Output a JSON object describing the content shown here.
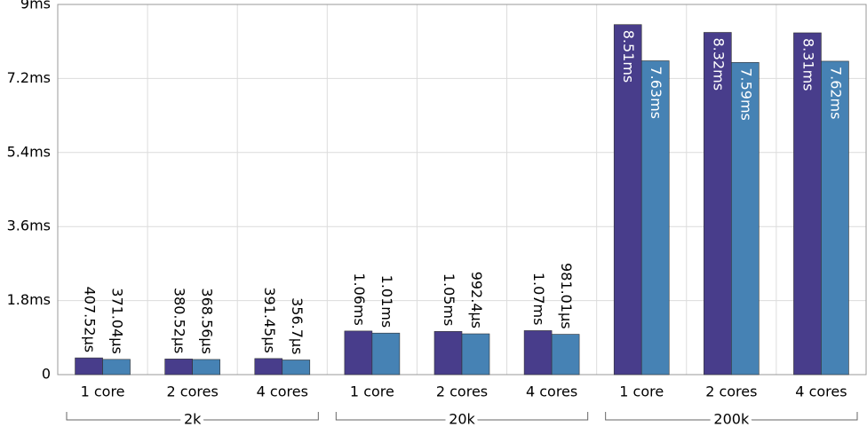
{
  "chart_data": {
    "type": "bar",
    "categories": [
      "1 core",
      "2 cores",
      "4 cores",
      "1 core",
      "2 cores",
      "4 cores",
      "1 core",
      "2 cores",
      "4 cores"
    ],
    "group_labels": [
      "2k",
      "20k",
      "200k"
    ],
    "series": [
      {
        "color": "#483d8b",
        "values": [
          0.40752,
          0.38052,
          0.39145,
          1.06,
          1.05,
          1.07,
          8.51,
          8.32,
          8.31
        ],
        "value_labels": [
          "407.52μs",
          "380.52μs",
          "391.45μs",
          "1.06ms",
          "1.05ms",
          "1.07ms",
          "8.51ms",
          "8.32ms",
          "8.31ms"
        ]
      },
      {
        "color": "#4682b4",
        "values": [
          0.37104,
          0.36856,
          0.3567,
          1.01,
          0.9924,
          0.98101,
          7.63,
          7.59,
          7.62
        ],
        "value_labels": [
          "371.04μs",
          "368.56μs",
          "356.7μs",
          "1.01ms",
          "992.4μs",
          "981.01μs",
          "7.63ms",
          "7.59ms",
          "7.62ms"
        ]
      }
    ],
    "ylim": [
      0,
      9
    ],
    "yticks": [
      0,
      {
        "value": 1.8,
        "label": "1.8ms"
      },
      {
        "value": 3.6,
        "label": "3.6ms"
      },
      {
        "value": 5.4,
        "label": "5.4ms"
      },
      {
        "value": 7.2,
        "label": "7.2ms"
      },
      {
        "value": 9,
        "label": "9ms"
      }
    ],
    "grid": true
  }
}
